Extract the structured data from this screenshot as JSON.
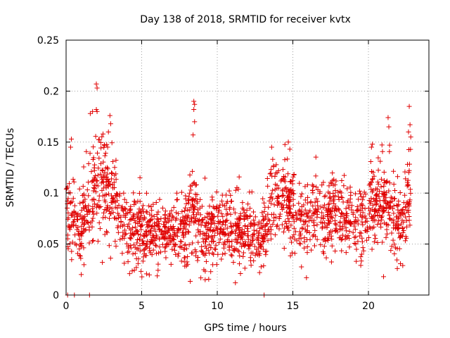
{
  "chart_data": {
    "type": "scatter",
    "title": "Day 138 of 2018, SRMTID for receiver kvtx",
    "xlabel": "GPS time / hours",
    "ylabel": "SRMTID / TECUs",
    "xlim": [
      0,
      24
    ],
    "ylim": [
      0,
      0.25
    ],
    "x_ticks": [
      0,
      5,
      10,
      15,
      20
    ],
    "x_tick_labels": [
      "0",
      "5",
      "10",
      "15",
      "20"
    ],
    "y_ticks": [
      0,
      0.05,
      0.1,
      0.15,
      0.2,
      0.25
    ],
    "y_tick_labels": [
      "0",
      "0.05",
      "0.1",
      "0.15",
      "0.2",
      "0.25"
    ],
    "grid": true,
    "marker": "plus",
    "series_color": "#e00000",
    "zero_points_x": [
      0.1,
      0.55,
      1.55,
      13.1
    ],
    "envelope": [
      [
        0.0,
        0.085,
        0.022
      ],
      [
        0.5,
        0.075,
        0.025
      ],
      [
        1.0,
        0.06,
        0.02
      ],
      [
        1.3,
        0.085,
        0.025
      ],
      [
        2.0,
        0.11,
        0.035
      ],
      [
        2.6,
        0.115,
        0.03
      ],
      [
        3.1,
        0.095,
        0.025
      ],
      [
        3.7,
        0.07,
        0.02
      ],
      [
        4.5,
        0.065,
        0.02
      ],
      [
        5.5,
        0.06,
        0.018
      ],
      [
        6.8,
        0.058,
        0.018
      ],
      [
        7.8,
        0.06,
        0.018
      ],
      [
        8.4,
        0.09,
        0.03
      ],
      [
        9.0,
        0.055,
        0.02
      ],
      [
        10.0,
        0.07,
        0.02
      ],
      [
        11.0,
        0.065,
        0.02
      ],
      [
        12.0,
        0.062,
        0.02
      ],
      [
        12.8,
        0.05,
        0.015
      ],
      [
        13.6,
        0.09,
        0.025
      ],
      [
        14.5,
        0.1,
        0.025
      ],
      [
        15.3,
        0.065,
        0.02
      ],
      [
        16.5,
        0.085,
        0.02
      ],
      [
        18.0,
        0.075,
        0.02
      ],
      [
        19.5,
        0.07,
        0.02
      ],
      [
        20.5,
        0.095,
        0.025
      ],
      [
        21.5,
        0.085,
        0.025
      ],
      [
        22.2,
        0.065,
        0.02
      ],
      [
        22.8,
        0.11,
        0.03
      ]
    ],
    "outliers": [
      [
        2.0,
        0.207
      ],
      [
        2.05,
        0.203
      ],
      [
        2.0,
        0.182
      ],
      [
        2.05,
        0.18
      ],
      [
        1.6,
        0.178
      ],
      [
        1.75,
        0.18
      ],
      [
        2.9,
        0.176
      ],
      [
        2.95,
        0.168
      ],
      [
        2.8,
        0.16
      ],
      [
        2.75,
        0.145
      ],
      [
        0.35,
        0.153
      ],
      [
        0.3,
        0.145
      ],
      [
        8.45,
        0.19
      ],
      [
        8.5,
        0.187
      ],
      [
        8.45,
        0.182
      ],
      [
        8.5,
        0.17
      ],
      [
        8.4,
        0.157
      ],
      [
        14.7,
        0.15
      ],
      [
        14.8,
        0.143
      ],
      [
        13.6,
        0.145
      ],
      [
        21.3,
        0.174
      ],
      [
        21.35,
        0.165
      ],
      [
        21.4,
        0.147
      ],
      [
        22.7,
        0.185
      ],
      [
        22.75,
        0.167
      ],
      [
        22.65,
        0.16
      ],
      [
        22.8,
        0.155
      ],
      [
        20.2,
        0.145
      ],
      [
        2.4,
        0.032
      ],
      [
        9.2,
        0.015
      ],
      [
        11.2,
        0.012
      ],
      [
        15.9,
        0.017
      ],
      [
        21.0,
        0.018
      ],
      [
        12.8,
        0.022
      ],
      [
        4.2,
        0.021
      ]
    ]
  }
}
